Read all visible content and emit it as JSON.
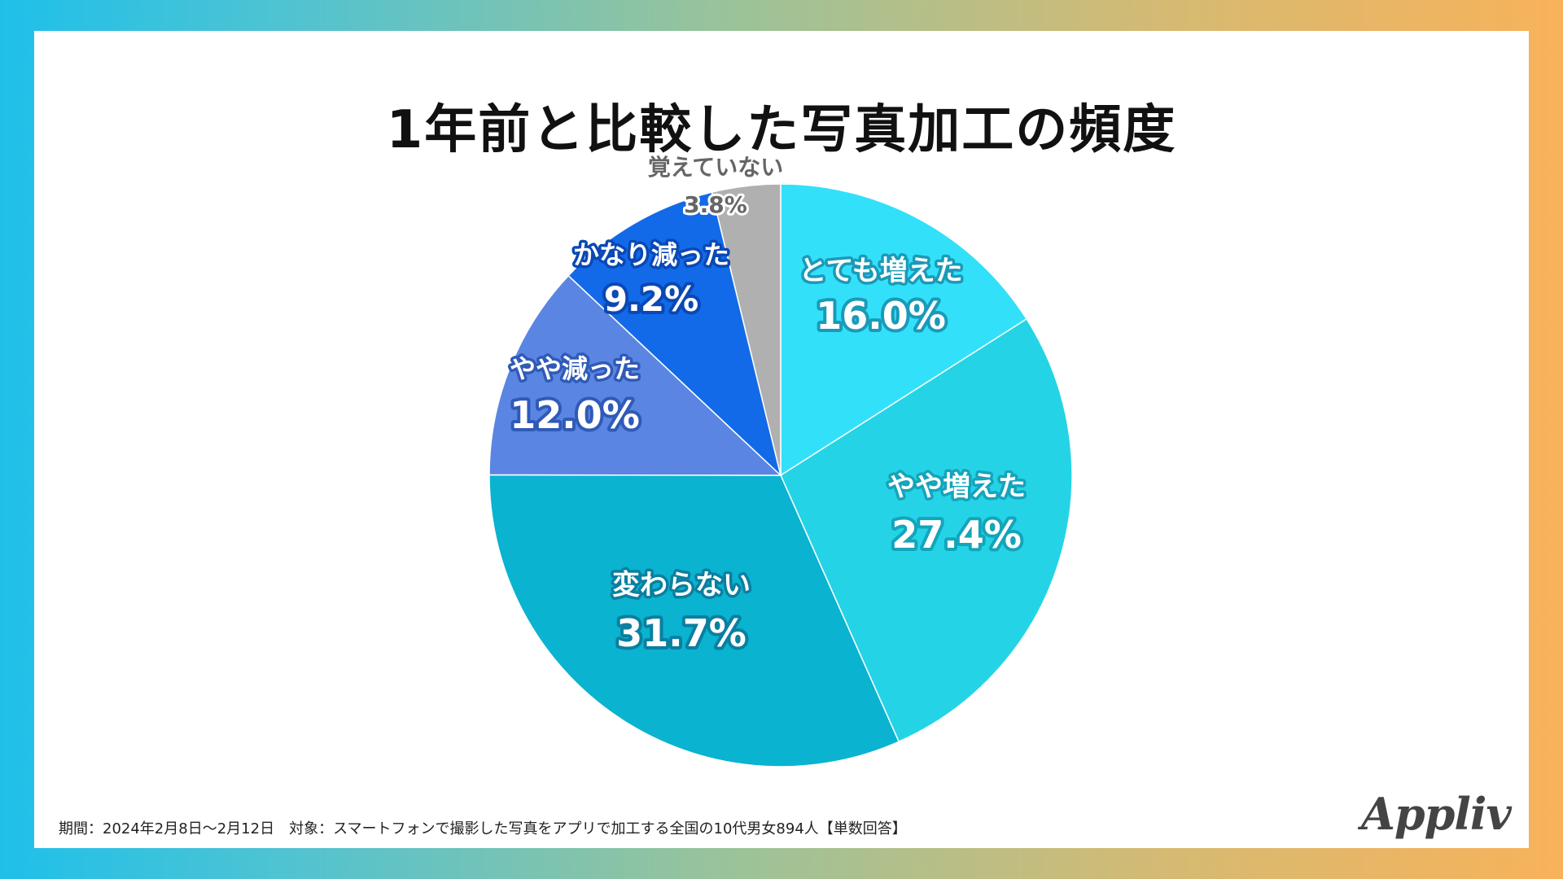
{
  "title": "1年前と比較した写真加工の頻度",
  "chart_data": {
    "type": "pie",
    "title": "1年前と比較した写真加工の頻度",
    "unit": "%",
    "start": "12 o'clock, clockwise",
    "slices": [
      {
        "label": "とても増えた",
        "value": 16.0,
        "value_label": "16.0%",
        "color": "#33e0fa",
        "text_color": "#ffffff",
        "outline_color": "#1a9ab8"
      },
      {
        "label": "やや増えた",
        "value": 27.4,
        "value_label": "27.4%",
        "color": "#24d4e6",
        "text_color": "#ffffff",
        "outline_color": "#14a4bb"
      },
      {
        "label": "変わらない",
        "value": 31.7,
        "value_label": "31.7%",
        "color": "#0ab3d0",
        "text_color": "#ffffff",
        "outline_color": "#0a7fa0"
      },
      {
        "label": "やや減った",
        "value": 12.0,
        "value_label": "12.0%",
        "color": "#5b85e2",
        "text_color": "#ffffff",
        "outline_color": "#2f5ab8"
      },
      {
        "label": "かなり減った",
        "value": 9.2,
        "value_label": "9.2%",
        "color": "#136ae8",
        "text_color": "#ffffff",
        "outline_color": "#0a48b5"
      },
      {
        "label": "覚えていない",
        "value": 3.8,
        "value_label": "3.8%",
        "color": "#b0b0b0",
        "text_color": "#666666",
        "outline_color": "#ffffff"
      }
    ]
  },
  "footer": {
    "note": "期間：2024年2月8日〜2月12日　対象：スマートフォンで撮影した写真をアプリで加工する全国の10代男女894人【単数回答】"
  },
  "brand": {
    "name": "Appliv"
  }
}
